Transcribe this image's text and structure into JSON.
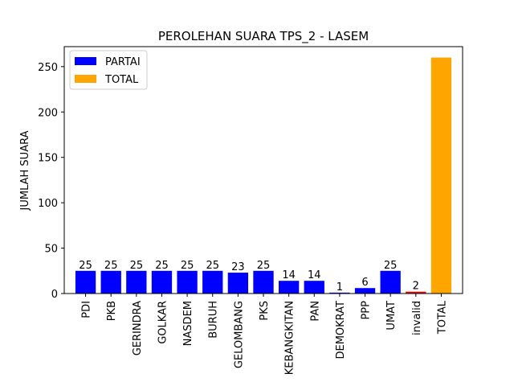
{
  "chart_data": {
    "type": "bar",
    "title": "PEROLEHAN SUARA TPS_2 - LASEM",
    "xlabel": "",
    "ylabel": "JUMLAH SUARA",
    "ylim": [
      0,
      272
    ],
    "yticks": [
      0,
      50,
      100,
      150,
      200,
      250
    ],
    "categories": [
      "PDI",
      "PKB",
      "GERINDRA",
      "GOLKAR",
      "NASDEM",
      "BURUH",
      "GELOMBANG",
      "PKS",
      "KEBANGKITAN",
      "PAN",
      "DEMOKRAT",
      "PPP",
      "UMAT",
      "invalid",
      "TOTAL"
    ],
    "values": [
      25,
      25,
      25,
      25,
      25,
      25,
      23,
      25,
      14,
      14,
      1,
      6,
      25,
      2,
      260
    ],
    "value_labels": [
      "25",
      "25",
      "25",
      "25",
      "25",
      "25",
      "23",
      "25",
      "14",
      "14",
      "1",
      "6",
      "25",
      "2",
      ""
    ],
    "bar_colors": [
      "#0000ff",
      "#0000ff",
      "#0000ff",
      "#0000ff",
      "#0000ff",
      "#0000ff",
      "#0000ff",
      "#0000ff",
      "#0000ff",
      "#0000ff",
      "#0000ff",
      "#0000ff",
      "#0000ff",
      "#ff0000",
      "#ffa500"
    ],
    "legend": {
      "placement": "top-left",
      "entries": [
        {
          "label": "PARTAI",
          "color": "#0000ff"
        },
        {
          "label": "TOTAL",
          "color": "#ffa500"
        }
      ]
    },
    "grid": false
  }
}
